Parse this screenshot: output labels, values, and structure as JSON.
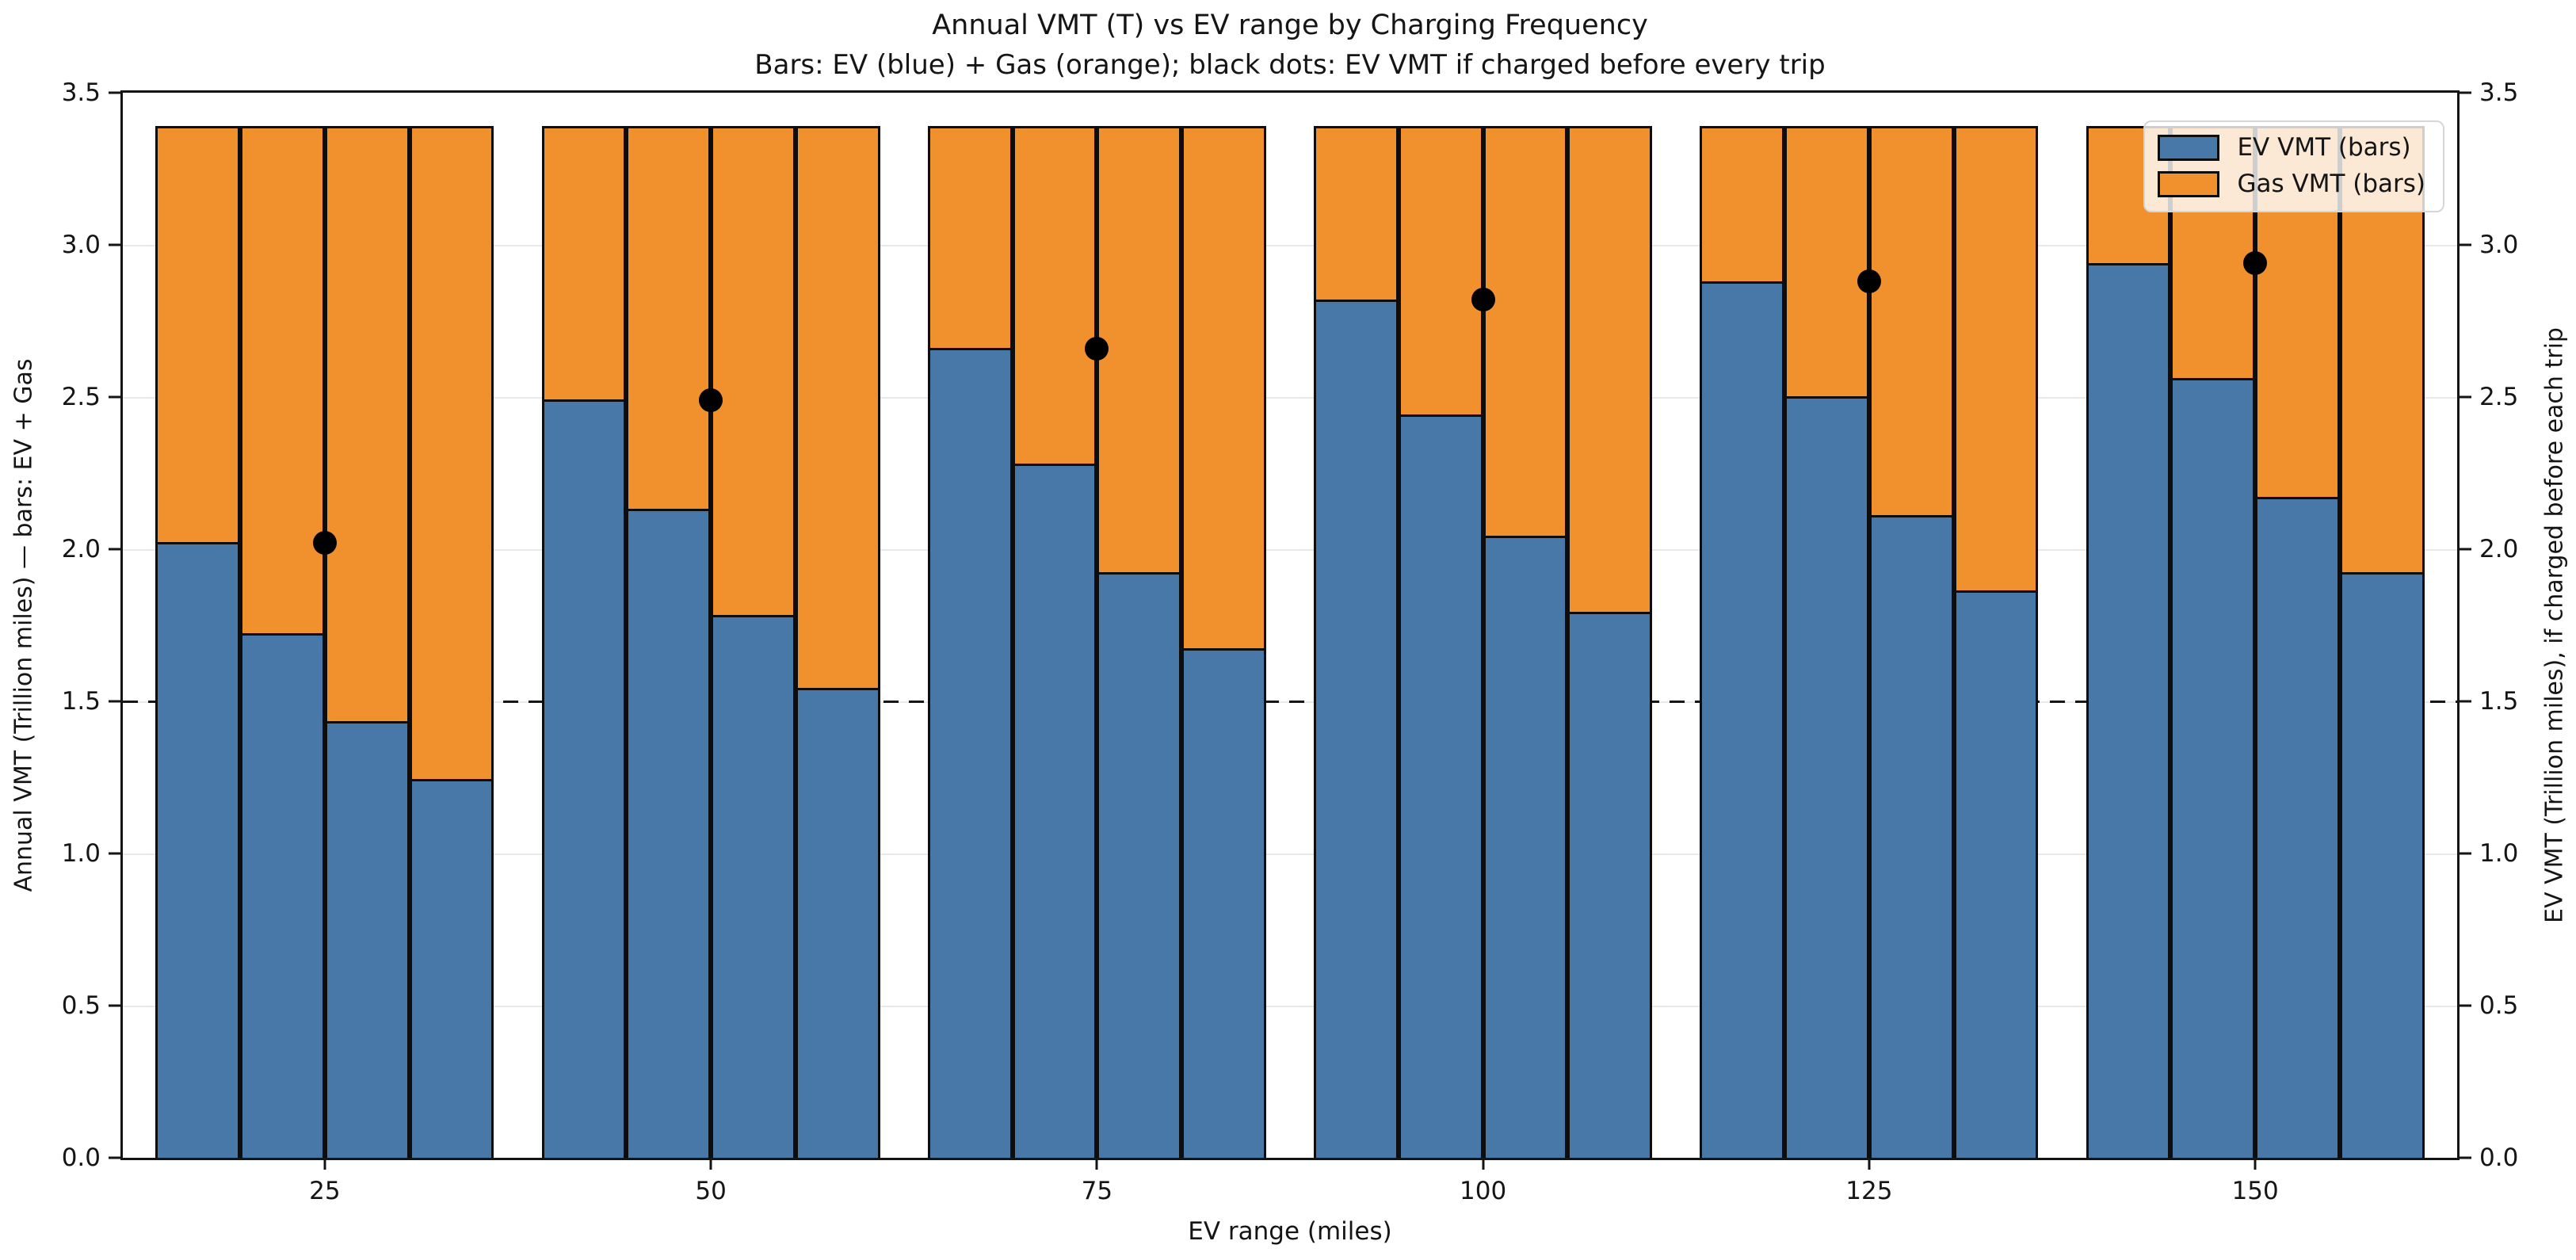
{
  "title": "Annual VMT (T) vs EV range by Charging Frequency",
  "subtitle": "Bars: EV (blue) + Gas (orange); black dots: EV VMT if charged before every trip",
  "axes": {
    "x_label": "EV range (miles)",
    "left_y_label": "Annual VMT (Trillion miles) — bars: EV + Gas",
    "right_y_label": "EV VMT (Trillion miles), if charged before each trip",
    "y_tick_labels": [
      "0.0",
      "0.5",
      "1.0",
      "1.5",
      "2.0",
      "2.5",
      "3.0",
      "3.5"
    ],
    "x_tick_labels": [
      "25",
      "50",
      "75",
      "100",
      "125",
      "150"
    ]
  },
  "legend": {
    "items": [
      {
        "label": "EV VMT (bars)",
        "color": "#4878a8"
      },
      {
        "label": "Gas VMT (bars)",
        "color": "#f0912d"
      }
    ]
  },
  "chart_data": {
    "type": "bar",
    "stacked": true,
    "title": "Annual VMT (T) vs EV range by Charging Frequency",
    "subtitle": "Bars: EV (blue) + Gas (orange); black dots: EV VMT if charged before every trip",
    "xlabel": "EV range (miles)",
    "ylabel_left": "Annual VMT (Trillion miles) — bars: EV + Gas",
    "ylabel_right": "EV VMT (Trillion miles), if charged before each trip",
    "ylim": [
      0,
      3.5
    ],
    "yticks": [
      0.0,
      0.5,
      1.0,
      1.5,
      2.0,
      2.5,
      3.0,
      3.5
    ],
    "categories": [
      25,
      50,
      75,
      100,
      125,
      150
    ],
    "bars_per_group": 4,
    "stack_total": 3.39,
    "grid": true,
    "legend_position": "upper right",
    "series": [
      {
        "name": "EV VMT (bars)",
        "color": "#4878a8",
        "values_by_group": [
          [
            2.02,
            1.72,
            1.43,
            1.24
          ],
          [
            2.49,
            2.13,
            1.78,
            1.54
          ],
          [
            2.66,
            2.28,
            1.92,
            1.67
          ],
          [
            2.82,
            2.44,
            2.04,
            1.79
          ],
          [
            2.88,
            2.5,
            2.11,
            1.86
          ],
          [
            2.94,
            2.56,
            2.17,
            1.92
          ]
        ]
      },
      {
        "name": "Gas VMT (bars)",
        "color": "#f0912d",
        "values_by_group": [
          [
            1.37,
            1.67,
            1.96,
            2.15
          ],
          [
            0.9,
            1.26,
            1.61,
            1.85
          ],
          [
            0.73,
            1.11,
            1.47,
            1.72
          ],
          [
            0.57,
            0.95,
            1.35,
            1.6
          ],
          [
            0.51,
            0.89,
            1.28,
            1.53
          ],
          [
            0.45,
            0.83,
            1.22,
            1.47
          ]
        ]
      }
    ],
    "dots": {
      "name": "EV VMT if charged before every trip",
      "color": "#000000",
      "values": [
        2.02,
        2.49,
        2.66,
        2.82,
        2.88,
        2.94
      ]
    },
    "threshold_line": {
      "y": 1.5,
      "style": "dashed",
      "color": "#161616"
    }
  }
}
